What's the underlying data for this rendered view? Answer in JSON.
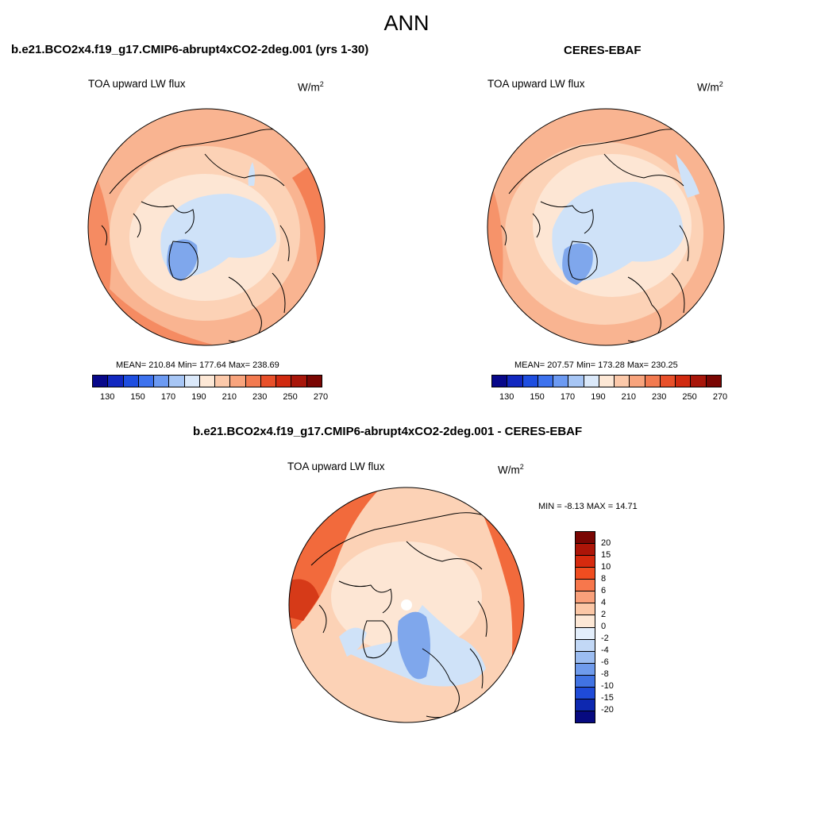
{
  "page_title": "ANN",
  "panels": [
    {
      "title": "b.e21.BCO2x4.f19_g17.CMIP6-abrupt4xCO2-2deg.001 (yrs 1-30)",
      "subtitle": "TOA upward LW flux",
      "units": "W/m",
      "units_exp": "2",
      "stats": "MEAN= 210.84  Min= 177.64  Max= 238.69",
      "mean": 210.84,
      "min": 177.64,
      "max": 238.69
    },
    {
      "title": "CERES-EBAF",
      "subtitle": "TOA upward LW flux",
      "units": "W/m",
      "units_exp": "2",
      "stats": "MEAN= 207.57  Min= 173.28  Max= 230.25",
      "mean": 207.57,
      "min": 173.28,
      "max": 230.25
    }
  ],
  "diff_panel": {
    "title": "b.e21.BCO2x4.f19_g17.CMIP6-abrupt4xCO2-2deg.001 - CERES-EBAF",
    "subtitle": "TOA upward LW flux",
    "units": "W/m",
    "units_exp": "2",
    "minmax": "MIN =  -8.13 MAX =  14.71",
    "min": -8.13,
    "max": 14.71
  },
  "abs_colorbar": {
    "labels": [
      "130",
      "150",
      "170",
      "190",
      "210",
      "230",
      "250",
      "270"
    ],
    "colors": [
      "#08088a",
      "#1228c0",
      "#1e4ee0",
      "#3d72ee",
      "#6c9af2",
      "#a7c6f5",
      "#dbe9fa",
      "#fde8d6",
      "#fcc9aa",
      "#f8a47d",
      "#f27a50",
      "#e8502a",
      "#d02a10",
      "#a8160a",
      "#7a0603"
    ]
  },
  "diff_colorbar": {
    "labels": [
      "20",
      "15",
      "10",
      "8",
      "6",
      "4",
      "2",
      "0",
      "-2",
      "-4",
      "-6",
      "-8",
      "-10",
      "-15",
      "-20"
    ],
    "colors": [
      "#7a0603",
      "#ad1508",
      "#d62a0e",
      "#f04d20",
      "#f7774c",
      "#f9a07a",
      "#fbc7a6",
      "#fde8d6",
      "#e3eefb",
      "#c2d8f6",
      "#9cbdf1",
      "#6f9bec",
      "#4173e3",
      "#1f4bd8",
      "#0d28b0",
      "#070a80"
    ]
  },
  "map_colors": {
    "ocean_warm": "#f9b491",
    "mid": "#fcd2b6",
    "pale": "#fde6d4",
    "cool": "#cfe2f8",
    "cold": "#7fa7ec",
    "hot": "#f26a3c",
    "coast": "#000000"
  }
}
